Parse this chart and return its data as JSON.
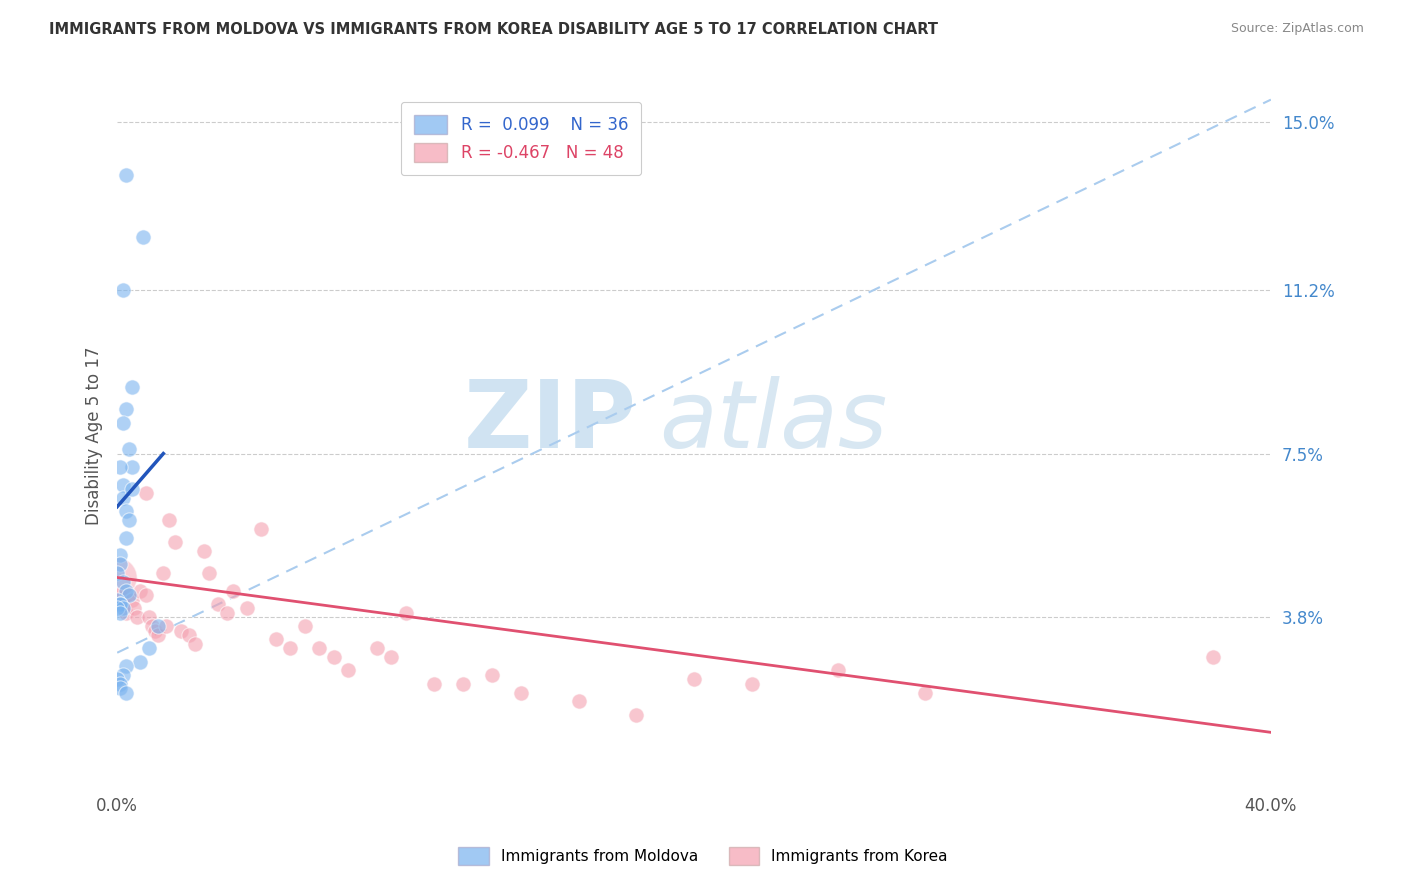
{
  "title": "IMMIGRANTS FROM MOLDOVA VS IMMIGRANTS FROM KOREA DISABILITY AGE 5 TO 17 CORRELATION CHART",
  "source": "Source: ZipAtlas.com",
  "ylabel_label": "Disability Age 5 to 17",
  "xlim": [
    0.0,
    0.4
  ],
  "ylim": [
    0.0,
    0.158
  ],
  "ytick_positions": [
    0.038,
    0.075,
    0.112,
    0.15
  ],
  "ytick_labels": [
    "3.8%",
    "7.5%",
    "11.2%",
    "15.0%"
  ],
  "xtick_positions": [
    0.0,
    0.4
  ],
  "xtick_labels": [
    "0.0%",
    "40.0%"
  ],
  "moldova_color": "#7ab3ef",
  "korea_color": "#f4a0b0",
  "moldova_R": 0.099,
  "moldova_N": 36,
  "korea_R": -0.467,
  "korea_N": 48,
  "moldova_scatter_x": [
    0.003,
    0.009,
    0.002,
    0.005,
    0.003,
    0.002,
    0.004,
    0.005,
    0.001,
    0.002,
    0.002,
    0.003,
    0.004,
    0.003,
    0.001,
    0.001,
    0.0,
    0.002,
    0.003,
    0.004,
    0.0,
    0.001,
    0.001,
    0.002,
    0.0,
    0.001,
    0.014,
    0.011,
    0.008,
    0.003,
    0.002,
    0.0,
    0.001,
    0.001,
    0.003,
    0.005
  ],
  "moldova_scatter_y": [
    0.138,
    0.124,
    0.112,
    0.09,
    0.085,
    0.082,
    0.076,
    0.072,
    0.072,
    0.068,
    0.065,
    0.062,
    0.06,
    0.056,
    0.052,
    0.05,
    0.048,
    0.046,
    0.044,
    0.043,
    0.042,
    0.041,
    0.041,
    0.04,
    0.04,
    0.039,
    0.036,
    0.031,
    0.028,
    0.027,
    0.025,
    0.024,
    0.023,
    0.022,
    0.021,
    0.067
  ],
  "korea_scatter_x": [
    0.001,
    0.002,
    0.003,
    0.004,
    0.005,
    0.006,
    0.007,
    0.008,
    0.01,
    0.011,
    0.012,
    0.013,
    0.014,
    0.016,
    0.018,
    0.02,
    0.022,
    0.025,
    0.027,
    0.03,
    0.032,
    0.035,
    0.038,
    0.04,
    0.045,
    0.05,
    0.055,
    0.06,
    0.065,
    0.07,
    0.075,
    0.08,
    0.09,
    0.095,
    0.1,
    0.11,
    0.12,
    0.13,
    0.14,
    0.16,
    0.18,
    0.2,
    0.22,
    0.25,
    0.28,
    0.38,
    0.01,
    0.017
  ],
  "korea_scatter_y": [
    0.043,
    0.041,
    0.039,
    0.043,
    0.042,
    0.04,
    0.038,
    0.044,
    0.043,
    0.038,
    0.036,
    0.035,
    0.034,
    0.048,
    0.06,
    0.055,
    0.035,
    0.034,
    0.032,
    0.053,
    0.048,
    0.041,
    0.039,
    0.044,
    0.04,
    0.058,
    0.033,
    0.031,
    0.036,
    0.031,
    0.029,
    0.026,
    0.031,
    0.029,
    0.039,
    0.023,
    0.023,
    0.025,
    0.021,
    0.019,
    0.016,
    0.024,
    0.023,
    0.026,
    0.021,
    0.029,
    0.066,
    0.036
  ],
  "moldova_solid_line_x": [
    0.0,
    0.016
  ],
  "moldova_solid_line_y": [
    0.063,
    0.075
  ],
  "moldova_dashed_line_x": [
    0.0,
    0.4
  ],
  "moldova_dashed_line_y": [
    0.03,
    0.155
  ],
  "korea_line_x": [
    0.0,
    0.4
  ],
  "korea_line_y": [
    0.047,
    0.012
  ],
  "watermark_zip": "ZIP",
  "watermark_atlas": "atlas",
  "background_color": "#ffffff",
  "grid_color": "#cccccc"
}
